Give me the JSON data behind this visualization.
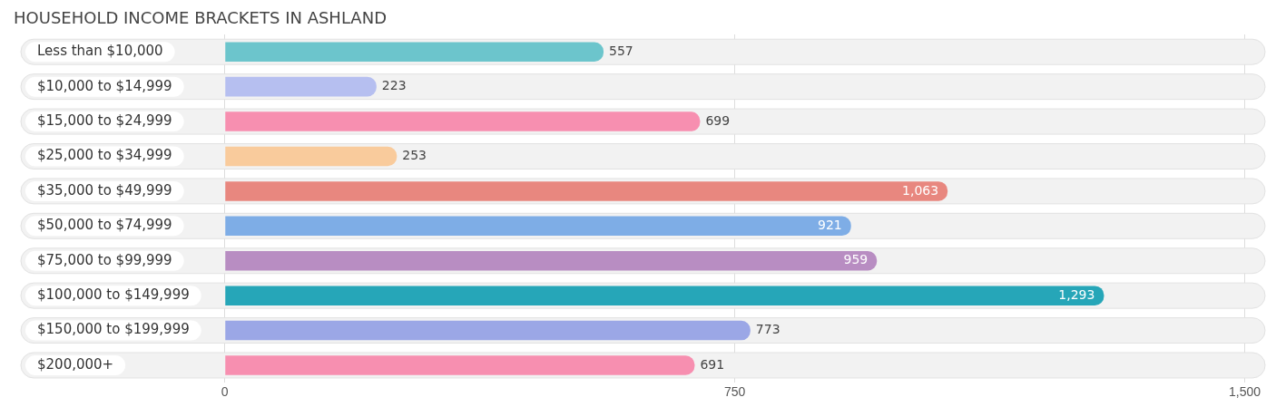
{
  "chart_data": {
    "type": "bar",
    "orientation": "horizontal",
    "title": "HOUSEHOLD INCOME BRACKETS IN ASHLAND",
    "categories": [
      "Less than $10,000",
      "$10,000 to $14,999",
      "$15,000 to $24,999",
      "$25,000 to $34,999",
      "$35,000 to $49,999",
      "$50,000 to $74,999",
      "$75,000 to $99,999",
      "$100,000 to $149,999",
      "$150,000 to $199,999",
      "$200,000+"
    ],
    "values": [
      557,
      223,
      699,
      253,
      1063,
      921,
      959,
      1293,
      773,
      691
    ],
    "colors": [
      "#6cc5cc",
      "#b6bff0",
      "#f78fb0",
      "#f9cb9c",
      "#e8877f",
      "#7eade6",
      "#b88dc2",
      "#26a6b8",
      "#9ba7e6",
      "#f78fb0"
    ],
    "value_labels": [
      "557",
      "223",
      "699",
      "253",
      "1,063",
      "921",
      "959",
      "1,293",
      "773",
      "691"
    ],
    "xlim": [
      -300,
      1530
    ],
    "xticks": [
      0,
      750,
      {
        "value": 1500,
        "label": "1,500"
      }
    ],
    "grid": "x",
    "legend": false
  }
}
